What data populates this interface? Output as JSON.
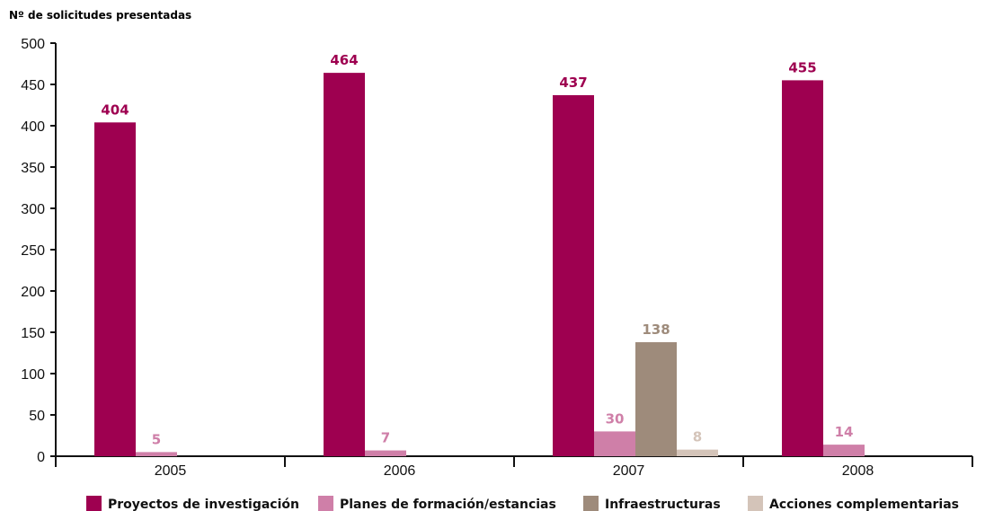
{
  "chart_data": {
    "type": "bar",
    "ylabel": "Nº de solicitudes presentadas",
    "xlabel": "",
    "title": "",
    "categories": [
      "2005",
      "2006",
      "2007",
      "2008"
    ],
    "ylim": [
      0,
      500
    ],
    "yticks": [
      0,
      50,
      100,
      150,
      200,
      250,
      300,
      350,
      400,
      450,
      500
    ],
    "grid": false,
    "legend_position": "bottom",
    "series": [
      {
        "name": "Proyectos de investigación",
        "color": "#9e0050",
        "label_color": "#9e0050",
        "values": [
          404,
          464,
          437,
          455
        ]
      },
      {
        "name": "Planes de formación/estancias",
        "color": "#cf7fa8",
        "label_color": "#cf7fa8",
        "values": [
          5,
          7,
          30,
          14
        ]
      },
      {
        "name": "Infraestructuras",
        "color": "#9e8b7b",
        "label_color": "#9e8b7b",
        "values": [
          null,
          null,
          138,
          null
        ]
      },
      {
        "name": "Acciones complementarias",
        "color": "#d4c4b9",
        "label_color": "#d4c4b9",
        "values": [
          null,
          null,
          8,
          null
        ]
      }
    ]
  }
}
